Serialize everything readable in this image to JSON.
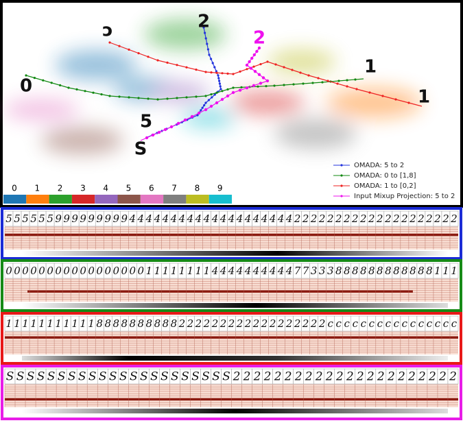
{
  "legend": [
    {
      "label": "OMADA: 5 to 2",
      "color": "#2233dd"
    },
    {
      "label": "OMADA: 0 to [1,8]",
      "color": "#118811"
    },
    {
      "label": "OMADA: 1 to [0,2]",
      "color": "#ee2222"
    },
    {
      "label": "Input Mixup Projection: 5 to 2",
      "color": "#ee11ee"
    }
  ],
  "colorbar": {
    "labels": [
      "0",
      "1",
      "2",
      "3",
      "4",
      "5",
      "6",
      "7",
      "8",
      "9"
    ],
    "colors": [
      "#1f77b4",
      "#ff7f0e",
      "#2ca02c",
      "#d62728",
      "#9467bd",
      "#8c564b",
      "#e377c2",
      "#7f7f7f",
      "#bcbd22",
      "#17becf"
    ]
  },
  "annotations": [
    "2",
    "ɔ",
    "2",
    "1",
    "0",
    "1",
    "5",
    "S"
  ],
  "strips": [
    {
      "color": "#1a2bd6",
      "digits": [
        "5",
        "5",
        "5",
        "5",
        "5",
        "5",
        "9",
        "9",
        "9",
        "9",
        "9",
        "9",
        "9",
        "9",
        "9",
        "4",
        "4",
        "4",
        "4",
        "4",
        "4",
        "4",
        "4",
        "4",
        "4",
        "4",
        "4",
        "4",
        "4",
        "4",
        "4",
        "4",
        "4",
        "4",
        "4",
        "2",
        "2",
        "2",
        "2",
        "2",
        "2",
        "2",
        "2",
        "2",
        "2",
        "2",
        "2",
        "2",
        "2",
        "2",
        "2",
        "2",
        "2",
        "2",
        "2"
      ]
    },
    {
      "color": "#168a16",
      "digits": [
        "0",
        "0",
        "0",
        "0",
        "0",
        "0",
        "0",
        "0",
        "0",
        "0",
        "0",
        "0",
        "0",
        "0",
        "0",
        "0",
        "0",
        "1",
        "1",
        "1",
        "1",
        "1",
        "1",
        "1",
        "1",
        "4",
        "4",
        "4",
        "4",
        "4",
        "4",
        "4",
        "4",
        "4",
        "4",
        "7",
        "7",
        "3",
        "3",
        "3",
        "8",
        "8",
        "8",
        "8",
        "8",
        "8",
        "8",
        "8",
        "8",
        "8",
        "8",
        "8",
        "1",
        "1",
        "1"
      ]
    },
    {
      "color": "#e81818",
      "digits": [
        "1",
        "1",
        "1",
        "1",
        "1",
        "1",
        "1",
        "1",
        "1",
        "1",
        "1",
        "8",
        "8",
        "8",
        "8",
        "8",
        "8",
        "8",
        "8",
        "8",
        "8",
        "2",
        "2",
        "2",
        "2",
        "2",
        "2",
        "2",
        "2",
        "2",
        "2",
        "2",
        "2",
        "2",
        "2",
        "2",
        "2",
        "2",
        "2",
        "c",
        "c",
        "c",
        "c",
        "c",
        "c",
        "c",
        "c",
        "c",
        "c",
        "c",
        "c",
        "c",
        "c",
        "c",
        "c"
      ]
    },
    {
      "color": "#e81ce8",
      "digits": [
        "S",
        "S",
        "S",
        "S",
        "S",
        "S",
        "S",
        "S",
        "S",
        "S",
        "S",
        "S",
        "S",
        "S",
        "S",
        "S",
        "S",
        "S",
        "S",
        "S",
        "S",
        "S",
        "2",
        "2",
        "2",
        "2",
        "2",
        "2",
        "2",
        "2",
        "2",
        "2",
        "2",
        "2",
        "2",
        "2",
        "2",
        "2",
        "2",
        "2",
        "2",
        "2",
        "2",
        "2"
      ]
    }
  ]
}
